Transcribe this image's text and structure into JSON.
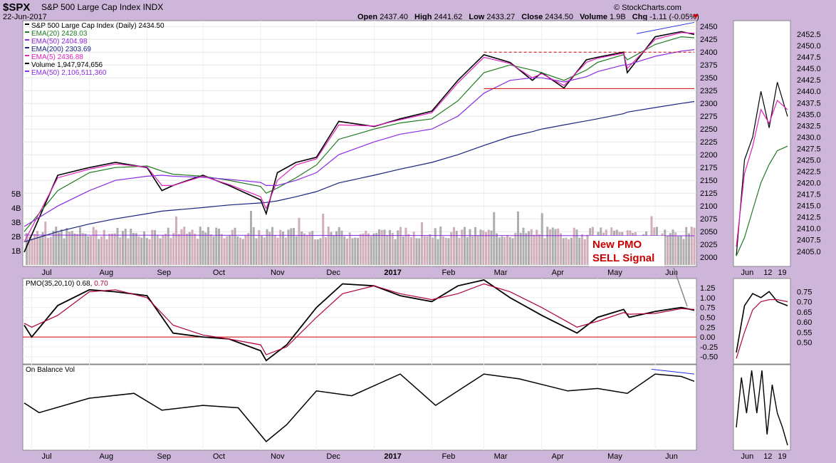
{
  "header": {
    "symbol": "$SPX",
    "name": "S&P 500 Large Cap Index",
    "exchange": "INDX",
    "date": "22-Jun-2017",
    "brand": "© StockCharts.com",
    "open_label": "Open",
    "open": "2437.40",
    "high_label": "High",
    "high": "2441.62",
    "low_label": "Low",
    "low": "2433.27",
    "close_label": "Close",
    "close": "2434.50",
    "volume_label": "Volume",
    "volume": "1.9B",
    "chg_label": "Chg",
    "chg": "-1.11 (-0.05%)"
  },
  "legend": [
    {
      "text": "S&P 500 Large Cap Index (Daily) 2434.50",
      "color": "#000000"
    },
    {
      "text": "EMA(20) 2428.03",
      "color": "#1e7a1e"
    },
    {
      "text": "EMA(50) 2404.98",
      "color": "#8a2be2"
    },
    {
      "text": "EMA(200) 2303.69",
      "color": "#1a237e"
    },
    {
      "text": "EMA(5) 2436.88",
      "color": "#e020c0"
    },
    {
      "text": "Volume 1,947,974,656",
      "color": "#000000"
    },
    {
      "text": "EMA(50) 2,106,511,360",
      "color": "#8a2be2"
    }
  ],
  "annotation": {
    "line1": "New PMO",
    "line2": "SELL Signal",
    "color": "#cc0000"
  },
  "pmo_label": {
    "name": "PMO(35,20,10)",
    "value1": "0.68,",
    "value2": "0.70",
    "value2_color": "#b00040"
  },
  "obv_label": "On Balance Vol",
  "colors": {
    "price": "#000000",
    "ema20": "#1e7a1e",
    "ema50": "#8a2be2",
    "ema200": "#1a237e",
    "ema5": "#e020c0",
    "pmo": "#000000",
    "pmo_signal": "#b00040",
    "hline": "#cc0000",
    "trend": "#2030e0",
    "up_vol": "#c8a0b0",
    "down_vol": "#a0a0a0"
  },
  "chart_data": [
    {
      "type": "line",
      "title": "S&P 500 Large Cap Index (Daily)",
      "x_tick_labels": [
        "Jul",
        "Aug",
        "Sep",
        "Oct",
        "Nov",
        "Dec",
        "2017",
        "Feb",
        "Mar",
        "Apr",
        "May",
        "Jun"
      ],
      "y_tick_labels": [
        "2000",
        "2025",
        "2050",
        "2075",
        "2100",
        "2125",
        "2150",
        "2175",
        "2200",
        "2225",
        "2250",
        "2275",
        "2300",
        "2325",
        "2350",
        "2375",
        "2400",
        "2425",
        "2450"
      ],
      "ylim": [
        1985,
        2460
      ],
      "volume_tick_labels": [
        "1B",
        "2B",
        "3B",
        "4B",
        "5B"
      ],
      "x": [
        "2016-06-27",
        "2016-07-15",
        "2016-08-01",
        "2016-08-15",
        "2016-09-01",
        "2016-09-09",
        "2016-09-15",
        "2016-10-01",
        "2016-10-15",
        "2016-11-01",
        "2016-11-04",
        "2016-11-10",
        "2016-11-20",
        "2016-12-01",
        "2016-12-13",
        "2017-01-01",
        "2017-01-15",
        "2017-02-01",
        "2017-02-15",
        "2017-03-01",
        "2017-03-15",
        "2017-03-27",
        "2017-04-01",
        "2017-04-13",
        "2017-04-25",
        "2017-05-01",
        "2017-05-15",
        "2017-05-17",
        "2017-06-01",
        "2017-06-15",
        "2017-06-22"
      ],
      "series": [
        {
          "name": "S&P 500 Large Cap Index (Daily)",
          "values": [
            2010,
            2160,
            2175,
            2185,
            2175,
            2130,
            2140,
            2160,
            2140,
            2112,
            2085,
            2165,
            2185,
            2195,
            2265,
            2255,
            2270,
            2285,
            2345,
            2395,
            2380,
            2345,
            2360,
            2330,
            2385,
            2390,
            2400,
            2360,
            2430,
            2440,
            2434.5
          ]
        },
        {
          "name": "EMA(20)",
          "values": [
            2050,
            2130,
            2165,
            2175,
            2178,
            2168,
            2162,
            2158,
            2150,
            2138,
            2125,
            2135,
            2155,
            2180,
            2230,
            2250,
            2262,
            2270,
            2305,
            2360,
            2375,
            2365,
            2360,
            2345,
            2365,
            2380,
            2395,
            2385,
            2415,
            2430,
            2428.03
          ]
        },
        {
          "name": "EMA(50)",
          "values": [
            2060,
            2100,
            2130,
            2150,
            2158,
            2160,
            2158,
            2156,
            2152,
            2146,
            2140,
            2140,
            2150,
            2165,
            2200,
            2225,
            2240,
            2250,
            2275,
            2320,
            2345,
            2350,
            2350,
            2342,
            2352,
            2362,
            2375,
            2375,
            2392,
            2402,
            2404.98
          ]
        },
        {
          "name": "EMA(200)",
          "values": [
            2030,
            2050,
            2065,
            2075,
            2085,
            2090,
            2092,
            2097,
            2102,
            2106,
            2107,
            2110,
            2118,
            2128,
            2145,
            2160,
            2172,
            2185,
            2200,
            2218,
            2235,
            2245,
            2250,
            2258,
            2266,
            2270,
            2280,
            2283,
            2292,
            2300,
            2303.69
          ]
        },
        {
          "name": "EMA(5)",
          "values": [
            2030,
            2155,
            2172,
            2182,
            2176,
            2140,
            2140,
            2158,
            2142,
            2118,
            2095,
            2150,
            2180,
            2192,
            2258,
            2256,
            2268,
            2282,
            2340,
            2390,
            2378,
            2350,
            2358,
            2335,
            2380,
            2388,
            2398,
            2368,
            2425,
            2438,
            2436.88
          ]
        }
      ]
    },
    {
      "type": "line",
      "title": "PMO(35,20,10)",
      "y_tick_labels": [
        "-0.50",
        "-0.25",
        "0.00",
        "0.25",
        "0.50",
        "0.75",
        "1.00",
        "1.25"
      ],
      "ylim": [
        -0.65,
        1.45
      ],
      "x": [
        "2016-06-27",
        "2016-07-01",
        "2016-07-15",
        "2016-08-01",
        "2016-08-15",
        "2016-09-01",
        "2016-09-15",
        "2016-10-01",
        "2016-10-15",
        "2016-11-01",
        "2016-11-04",
        "2016-11-15",
        "2016-12-01",
        "2016-12-15",
        "2017-01-01",
        "2017-01-15",
        "2017-02-01",
        "2017-02-15",
        "2017-03-01",
        "2017-03-15",
        "2017-04-01",
        "2017-04-20",
        "2017-05-01",
        "2017-05-15",
        "2017-05-18",
        "2017-06-01",
        "2017-06-15",
        "2017-06-22"
      ],
      "series": [
        {
          "name": "PMO",
          "values": [
            0.3,
            0.0,
            0.8,
            1.2,
            1.15,
            1.05,
            0.1,
            0.0,
            -0.05,
            -0.35,
            -0.6,
            -0.2,
            0.75,
            1.35,
            1.3,
            1.05,
            0.9,
            1.3,
            1.45,
            1.0,
            0.55,
            0.1,
            0.5,
            0.7,
            0.5,
            0.65,
            0.75,
            0.68
          ]
        },
        {
          "name": "Signal",
          "values": [
            0.35,
            0.25,
            0.55,
            1.15,
            1.2,
            1.0,
            0.3,
            0.05,
            -0.05,
            -0.2,
            -0.45,
            -0.25,
            0.5,
            1.1,
            1.3,
            1.1,
            0.95,
            1.1,
            1.35,
            1.15,
            0.75,
            0.25,
            0.4,
            0.62,
            0.58,
            0.6,
            0.72,
            0.7
          ]
        }
      ]
    },
    {
      "type": "line",
      "title": "On Balance Vol",
      "x": [
        "2016-06-27",
        "2016-07-05",
        "2016-08-01",
        "2016-08-25",
        "2016-09-09",
        "2016-10-01",
        "2016-10-20",
        "2016-11-04",
        "2016-11-15",
        "2016-12-01",
        "2016-12-20",
        "2017-01-15",
        "2017-02-03",
        "2017-03-01",
        "2017-03-20",
        "2017-04-15",
        "2017-05-01",
        "2017-05-17",
        "2017-06-01",
        "2017-06-15",
        "2017-06-22"
      ],
      "series": [
        {
          "name": "On Balance Vol",
          "values": [
            0.35,
            0.15,
            0.45,
            0.55,
            0.2,
            0.3,
            0.25,
            -0.45,
            -0.1,
            0.6,
            0.5,
            0.95,
            0.3,
            0.95,
            0.85,
            0.6,
            0.65,
            0.55,
            0.95,
            0.9,
            0.8
          ]
        }
      ]
    }
  ]
}
